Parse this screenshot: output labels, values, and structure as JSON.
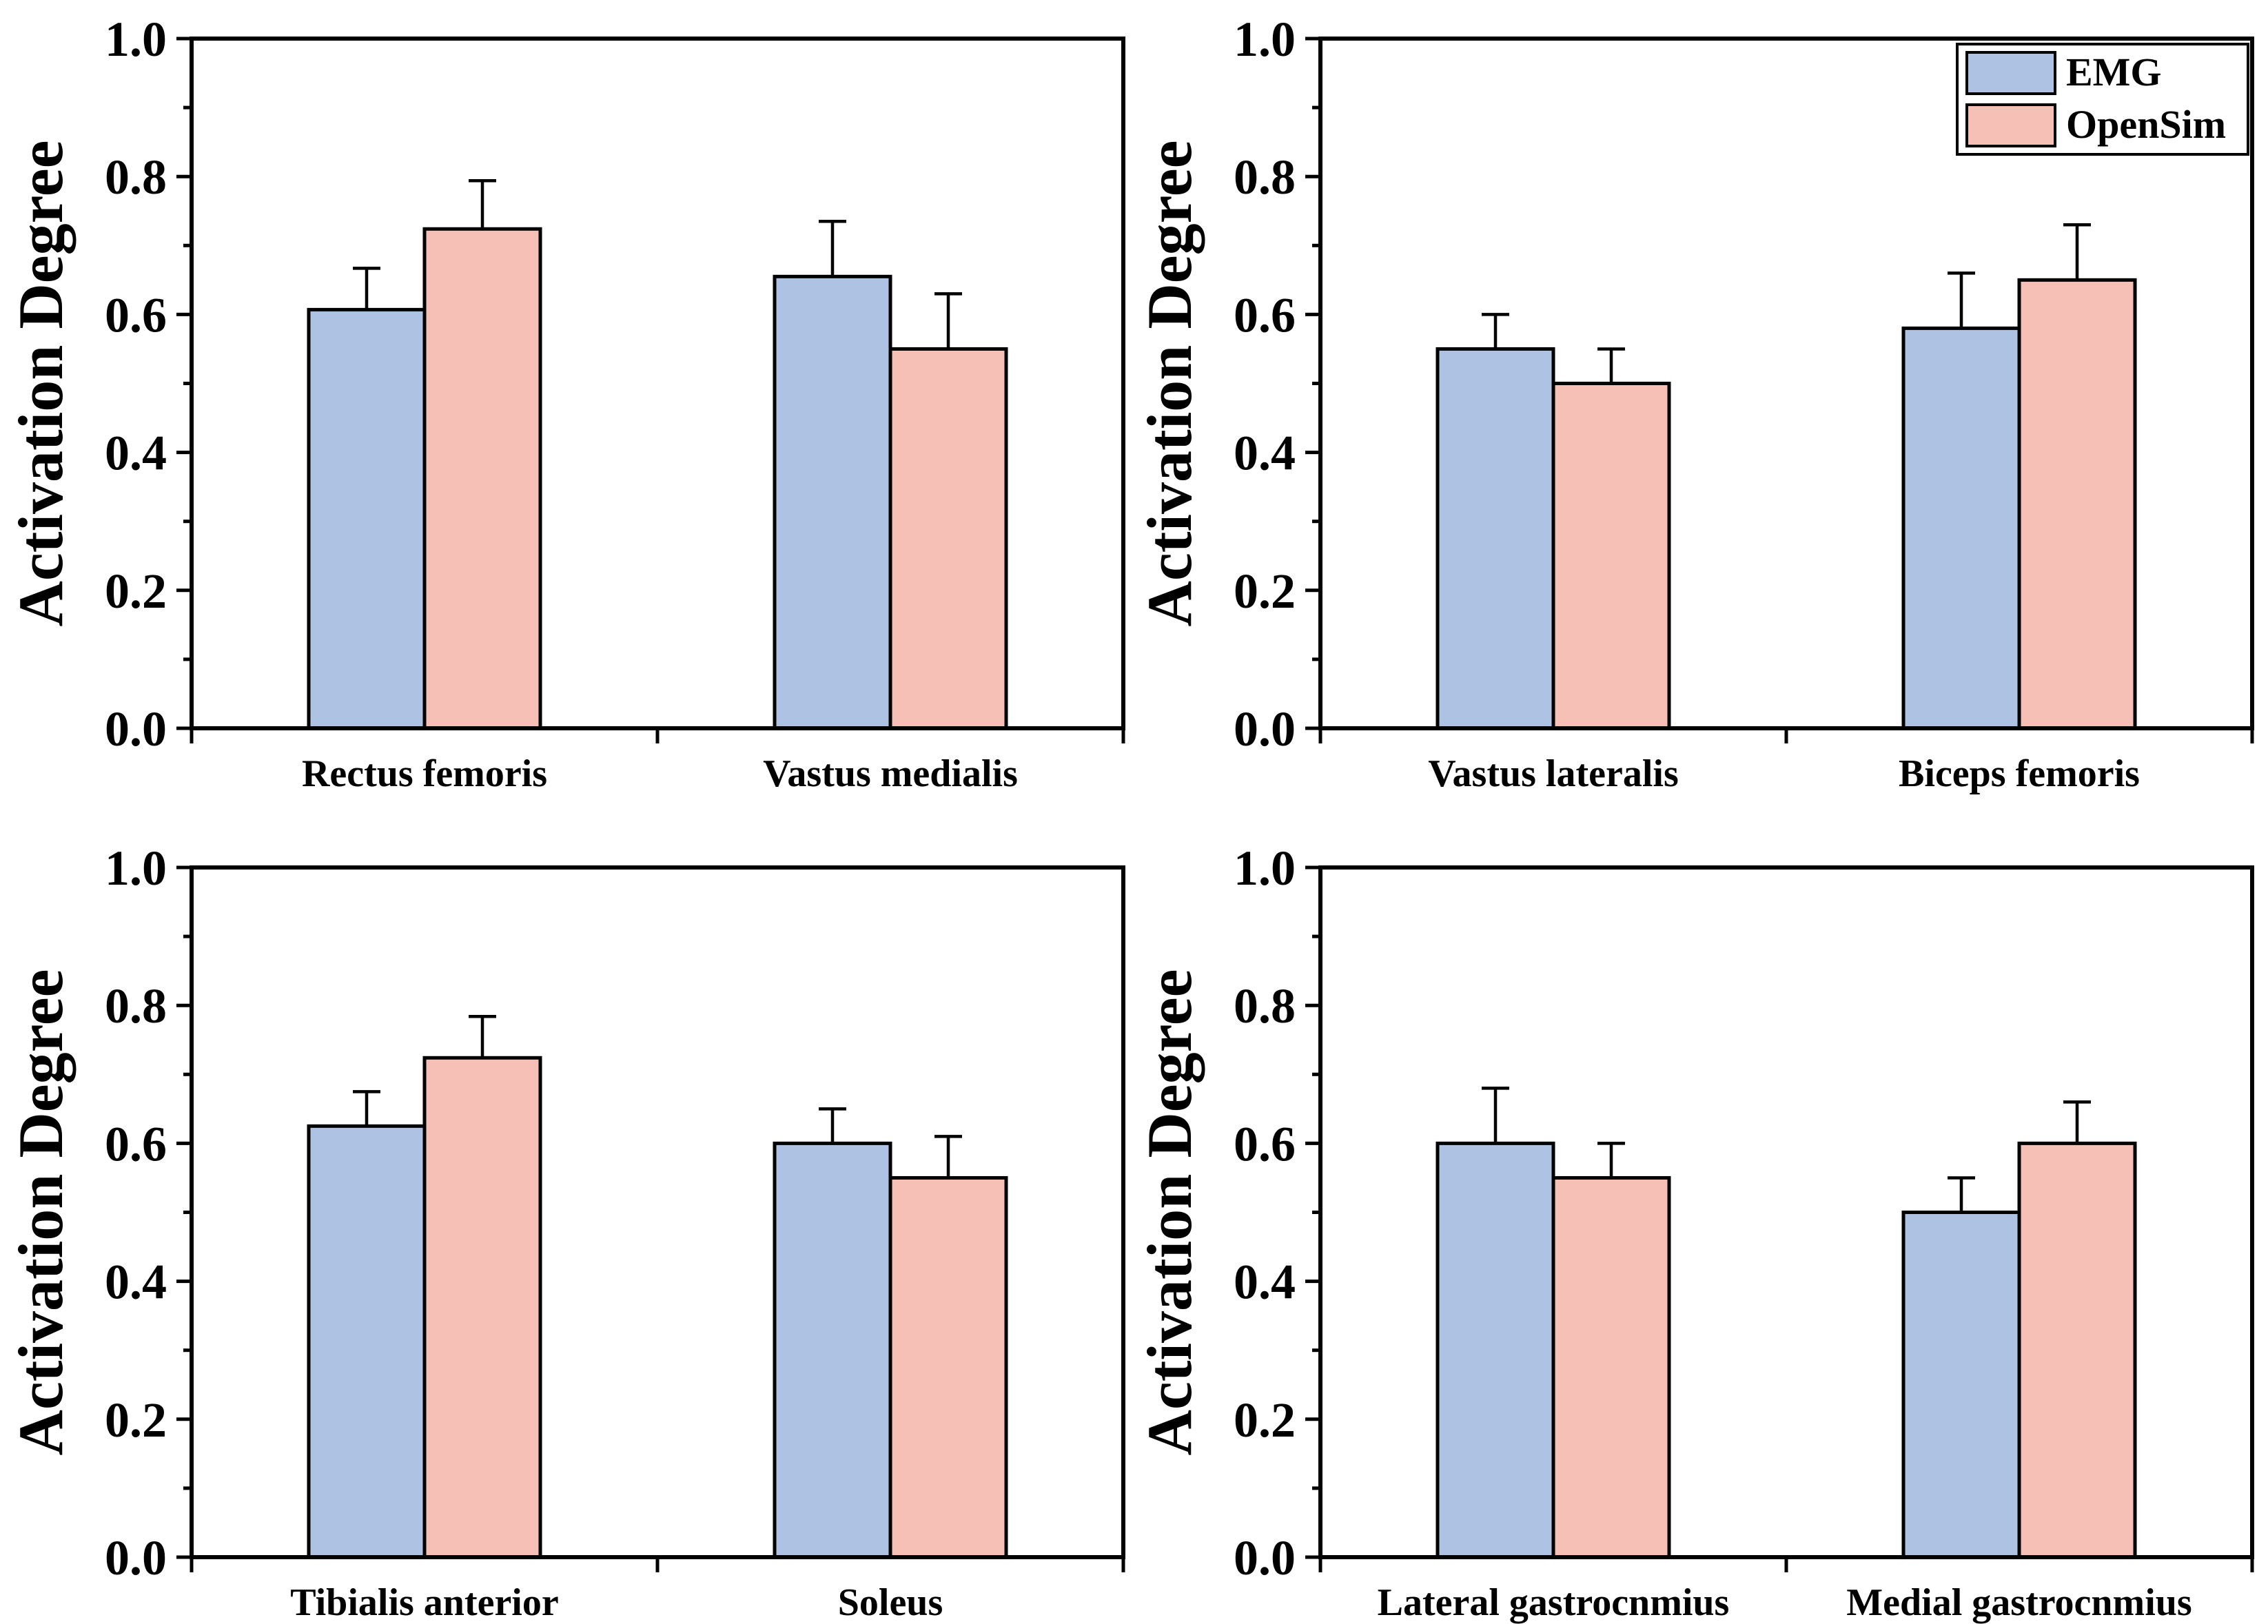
{
  "colors": {
    "emg": "#aec3e3",
    "opensim": "#f7c0b6"
  },
  "legend": {
    "series": [
      "EMG",
      "OpenSim"
    ]
  },
  "chart_data": [
    {
      "type": "bar",
      "ylabel": "Activation Degree",
      "ylim": [
        0,
        1.0
      ],
      "yticks": [
        "0.0",
        "0.2",
        "0.4",
        "0.6",
        "0.8",
        "1.0"
      ],
      "categories": [
        "Rectus femoris",
        "Vastus medialis"
      ],
      "series": [
        {
          "name": "EMG",
          "values": [
            0.607,
            0.655
          ],
          "errors": [
            0.06,
            0.08
          ]
        },
        {
          "name": "OpenSim",
          "values": [
            0.724,
            0.55
          ],
          "errors": [
            0.07,
            0.08
          ]
        }
      ]
    },
    {
      "type": "bar",
      "ylabel": "Activation Degree",
      "ylim": [
        0,
        1.0
      ],
      "yticks": [
        "0.0",
        "0.2",
        "0.4",
        "0.6",
        "0.8",
        "1.0"
      ],
      "categories": [
        "Vastus lateralis",
        "Biceps femoris"
      ],
      "series": [
        {
          "name": "EMG",
          "values": [
            0.55,
            0.58
          ],
          "errors": [
            0.05,
            0.08
          ]
        },
        {
          "name": "OpenSim",
          "values": [
            0.5,
            0.65
          ],
          "errors": [
            0.05,
            0.08
          ]
        }
      ],
      "legend": true
    },
    {
      "type": "bar",
      "ylabel": "Activation Degree",
      "ylim": [
        0,
        1.0
      ],
      "yticks": [
        "0.0",
        "0.2",
        "0.4",
        "0.6",
        "0.8",
        "1.0"
      ],
      "categories": [
        "Tibialis anterior",
        "Soleus"
      ],
      "series": [
        {
          "name": "EMG",
          "values": [
            0.625,
            0.6
          ],
          "errors": [
            0.05,
            0.05
          ]
        },
        {
          "name": "OpenSim",
          "values": [
            0.724,
            0.55
          ],
          "errors": [
            0.06,
            0.06
          ]
        }
      ]
    },
    {
      "type": "bar",
      "ylabel": "Activation Degree",
      "ylim": [
        0,
        1.0
      ],
      "yticks": [
        "0.0",
        "0.2",
        "0.4",
        "0.6",
        "0.8",
        "1.0"
      ],
      "categories": [
        "Lateral gastrocnmius",
        "Medial gastrocnmius"
      ],
      "series": [
        {
          "name": "EMG",
          "values": [
            0.6,
            0.5
          ],
          "errors": [
            0.08,
            0.05
          ]
        },
        {
          "name": "OpenSim",
          "values": [
            0.55,
            0.6
          ],
          "errors": [
            0.05,
            0.06
          ]
        }
      ]
    }
  ]
}
